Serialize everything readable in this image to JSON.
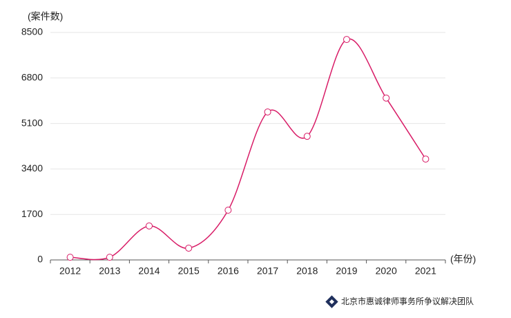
{
  "chart_data": {
    "type": "line",
    "y_label": "(案件数)",
    "x_label": "(年份)",
    "categories": [
      "2012",
      "2013",
      "2014",
      "2015",
      "2016",
      "2017",
      "2018",
      "2019",
      "2020",
      "2021"
    ],
    "series": [
      {
        "name": "案件数",
        "color": "#d81b66",
        "values": [
          100,
          100,
          1270,
          440,
          1860,
          5530,
          4620,
          8240,
          6050,
          3770
        ]
      }
    ],
    "ylim": [
      0,
      8500
    ],
    "yticks": [
      0,
      1700,
      3400,
      5100,
      6800,
      8500
    ],
    "grid": true,
    "smooth": true,
    "source": "北京市惠诚律师事务所争议解决团队"
  }
}
